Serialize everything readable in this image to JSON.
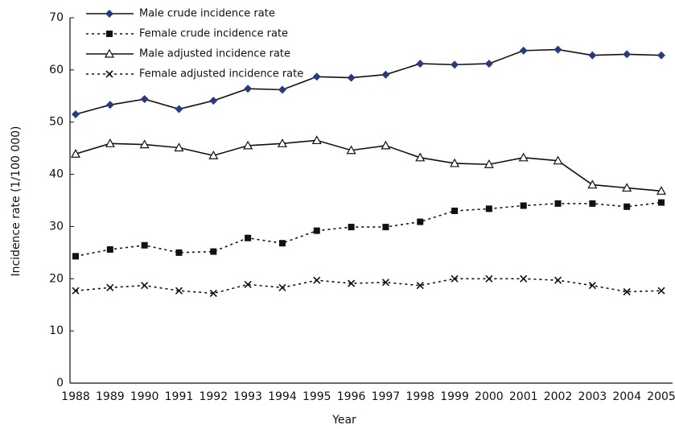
{
  "chart_data": {
    "type": "line",
    "x_label": "Year",
    "y_label": "Incidence rate (1/100 000)",
    "categories": [
      "1988",
      "1989",
      "1990",
      "1991",
      "1992",
      "1993",
      "1994",
      "1995",
      "1996",
      "1997",
      "1998",
      "1999",
      "2000",
      "2001",
      "2002",
      "2003",
      "2004",
      "2005"
    ],
    "series": [
      {
        "name": "Male crude incidence rate",
        "color": "#111111",
        "marker_color": "#2b3b7a",
        "marker": "diamond",
        "line_style": "solid",
        "values": [
          51.5,
          53.3,
          54.4,
          52.5,
          54.1,
          56.4,
          56.2,
          58.7,
          58.5,
          59.1,
          61.2,
          61.0,
          61.2,
          63.7,
          63.9,
          62.8,
          63.0,
          62.8
        ]
      },
      {
        "name": "Female crude incidence rate",
        "color": "#111111",
        "marker_color": "#111111",
        "marker": "square",
        "line_style": "dotted",
        "values": [
          24.3,
          25.6,
          26.4,
          25.0,
          25.2,
          27.8,
          26.8,
          29.2,
          29.9,
          29.9,
          30.9,
          33.0,
          33.4,
          34.0,
          34.4,
          34.4,
          33.8,
          34.6
        ]
      },
      {
        "name": "Male adjusted incidence rate",
        "color": "#111111",
        "marker_color": "#111111",
        "marker": "triangle",
        "line_style": "solid",
        "values": [
          43.9,
          45.9,
          45.7,
          45.1,
          43.6,
          45.5,
          45.9,
          46.5,
          44.6,
          45.5,
          43.2,
          42.1,
          41.9,
          43.2,
          42.6,
          38.0,
          37.4,
          36.8
        ]
      },
      {
        "name": "Female adjusted incidence rate",
        "color": "#111111",
        "marker_color": "#111111",
        "marker": "cross",
        "line_style": "dotted",
        "values": [
          17.7,
          18.3,
          18.7,
          17.7,
          17.2,
          18.9,
          18.3,
          19.7,
          19.1,
          19.3,
          18.7,
          20.0,
          20.0,
          20.0,
          19.7,
          18.7,
          17.5,
          17.7
        ]
      }
    ],
    "ylim": [
      0,
      70
    ],
    "yticks": [
      0,
      10,
      20,
      30,
      40,
      50,
      60,
      70
    ],
    "legend": "upper left",
    "grid": false
  }
}
